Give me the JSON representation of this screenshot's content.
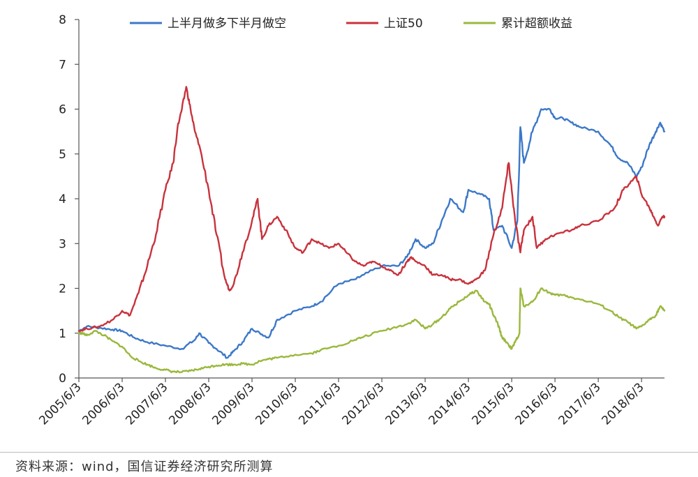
{
  "chart_data": {
    "type": "line",
    "title": "",
    "xlabel": "",
    "ylabel": "",
    "ylim": [
      0,
      8
    ],
    "yticks": [
      "0",
      "1",
      "2",
      "3",
      "4",
      "5",
      "6",
      "7",
      "8"
    ],
    "xlim": [
      2005.42,
      2018.95
    ],
    "xticks": [
      "2005/6/3",
      "2006/6/3",
      "2007/6/3",
      "2008/6/3",
      "2009/6/3",
      "2010/6/3",
      "2011/6/3",
      "2012/6/3",
      "2013/6/3",
      "2014/6/3",
      "2015/6/3",
      "2016/6/3",
      "2017/6/3",
      "2018/6/3"
    ],
    "legend_position": "top",
    "grid": false,
    "series": [
      {
        "name": "上半月做多下半月做空",
        "color": "#3c78c8",
        "points": [
          [
            2005.42,
            1.05
          ],
          [
            2005.6,
            1.15
          ],
          [
            2005.9,
            1.12
          ],
          [
            2006.2,
            1.08
          ],
          [
            2006.42,
            1.05
          ],
          [
            2006.7,
            0.9
          ],
          [
            2007.0,
            0.8
          ],
          [
            2007.42,
            0.72
          ],
          [
            2007.8,
            0.65
          ],
          [
            2008.1,
            0.85
          ],
          [
            2008.2,
            1.0
          ],
          [
            2008.42,
            0.78
          ],
          [
            2008.6,
            0.65
          ],
          [
            2008.85,
            0.45
          ],
          [
            2009.0,
            0.6
          ],
          [
            2009.2,
            0.8
          ],
          [
            2009.42,
            1.1
          ],
          [
            2009.6,
            1.0
          ],
          [
            2009.8,
            0.9
          ],
          [
            2010.0,
            1.3
          ],
          [
            2010.42,
            1.5
          ],
          [
            2010.8,
            1.6
          ],
          [
            2011.0,
            1.7
          ],
          [
            2011.42,
            2.1
          ],
          [
            2011.8,
            2.2
          ],
          [
            2012.0,
            2.3
          ],
          [
            2012.42,
            2.5
          ],
          [
            2012.8,
            2.5
          ],
          [
            2013.0,
            2.7
          ],
          [
            2013.2,
            3.1
          ],
          [
            2013.42,
            2.9
          ],
          [
            2013.6,
            3.0
          ],
          [
            2013.8,
            3.5
          ],
          [
            2014.0,
            4.0
          ],
          [
            2014.3,
            3.7
          ],
          [
            2014.42,
            4.2
          ],
          [
            2014.7,
            4.1
          ],
          [
            2014.9,
            4.0
          ],
          [
            2015.0,
            3.3
          ],
          [
            2015.2,
            3.4
          ],
          [
            2015.42,
            2.9
          ],
          [
            2015.55,
            3.5
          ],
          [
            2015.62,
            5.6
          ],
          [
            2015.7,
            4.8
          ],
          [
            2015.9,
            5.5
          ],
          [
            2016.1,
            6.0
          ],
          [
            2016.3,
            6.0
          ],
          [
            2016.42,
            5.8
          ],
          [
            2016.6,
            5.8
          ],
          [
            2016.8,
            5.7
          ],
          [
            2017.0,
            5.6
          ],
          [
            2017.42,
            5.5
          ],
          [
            2017.7,
            5.2
          ],
          [
            2017.9,
            4.9
          ],
          [
            2018.1,
            4.8
          ],
          [
            2018.3,
            4.5
          ],
          [
            2018.42,
            4.7
          ],
          [
            2018.6,
            5.2
          ],
          [
            2018.75,
            5.5
          ],
          [
            2018.85,
            5.7
          ],
          [
            2018.95,
            5.5
          ]
        ]
      },
      {
        "name": "上证50",
        "color": "#c8323c",
        "points": [
          [
            2005.42,
            1.05
          ],
          [
            2005.6,
            1.1
          ],
          [
            2005.9,
            1.15
          ],
          [
            2006.2,
            1.3
          ],
          [
            2006.42,
            1.5
          ],
          [
            2006.6,
            1.4
          ],
          [
            2006.8,
            1.9
          ],
          [
            2007.0,
            2.5
          ],
          [
            2007.2,
            3.2
          ],
          [
            2007.42,
            4.2
          ],
          [
            2007.6,
            4.8
          ],
          [
            2007.7,
            5.6
          ],
          [
            2007.8,
            6.0
          ],
          [
            2007.9,
            6.5
          ],
          [
            2008.0,
            6.0
          ],
          [
            2008.1,
            5.5
          ],
          [
            2008.2,
            5.2
          ],
          [
            2008.42,
            4.2
          ],
          [
            2008.6,
            3.2
          ],
          [
            2008.8,
            2.2
          ],
          [
            2008.9,
            1.95
          ],
          [
            2009.0,
            2.1
          ],
          [
            2009.2,
            2.8
          ],
          [
            2009.42,
            3.5
          ],
          [
            2009.55,
            4.0
          ],
          [
            2009.65,
            3.1
          ],
          [
            2009.8,
            3.4
          ],
          [
            2010.0,
            3.6
          ],
          [
            2010.2,
            3.3
          ],
          [
            2010.42,
            2.9
          ],
          [
            2010.6,
            2.8
          ],
          [
            2010.8,
            3.1
          ],
          [
            2011.0,
            3.0
          ],
          [
            2011.2,
            2.9
          ],
          [
            2011.42,
            3.0
          ],
          [
            2011.6,
            2.8
          ],
          [
            2011.8,
            2.6
          ],
          [
            2012.0,
            2.5
          ],
          [
            2012.2,
            2.6
          ],
          [
            2012.42,
            2.5
          ],
          [
            2012.6,
            2.4
          ],
          [
            2012.8,
            2.3
          ],
          [
            2013.0,
            2.6
          ],
          [
            2013.1,
            2.7
          ],
          [
            2013.2,
            2.6
          ],
          [
            2013.42,
            2.5
          ],
          [
            2013.6,
            2.3
          ],
          [
            2013.8,
            2.3
          ],
          [
            2014.0,
            2.2
          ],
          [
            2014.2,
            2.2
          ],
          [
            2014.42,
            2.1
          ],
          [
            2014.6,
            2.2
          ],
          [
            2014.8,
            2.4
          ],
          [
            2015.0,
            3.2
          ],
          [
            2015.2,
            3.8
          ],
          [
            2015.35,
            4.8
          ],
          [
            2015.42,
            4.2
          ],
          [
            2015.5,
            3.5
          ],
          [
            2015.62,
            2.8
          ],
          [
            2015.7,
            3.3
          ],
          [
            2015.9,
            3.6
          ],
          [
            2016.0,
            2.9
          ],
          [
            2016.2,
            3.1
          ],
          [
            2016.42,
            3.2
          ],
          [
            2016.8,
            3.3
          ],
          [
            2017.0,
            3.4
          ],
          [
            2017.42,
            3.5
          ],
          [
            2017.8,
            3.8
          ],
          [
            2018.0,
            4.2
          ],
          [
            2018.2,
            4.4
          ],
          [
            2018.3,
            4.5
          ],
          [
            2018.42,
            4.1
          ],
          [
            2018.6,
            3.8
          ],
          [
            2018.7,
            3.6
          ],
          [
            2018.8,
            3.4
          ],
          [
            2018.9,
            3.6
          ],
          [
            2018.95,
            3.6
          ]
        ]
      },
      {
        "name": "累计超额收益",
        "color": "#9ab83c",
        "points": [
          [
            2005.42,
            1.0
          ],
          [
            2005.5,
            1.0
          ],
          [
            2005.6,
            0.95
          ],
          [
            2005.8,
            1.05
          ],
          [
            2006.0,
            0.95
          ],
          [
            2006.2,
            0.82
          ],
          [
            2006.42,
            0.7
          ],
          [
            2006.6,
            0.5
          ],
          [
            2006.8,
            0.38
          ],
          [
            2007.0,
            0.3
          ],
          [
            2007.2,
            0.22
          ],
          [
            2007.42,
            0.18
          ],
          [
            2007.6,
            0.14
          ],
          [
            2007.8,
            0.13
          ],
          [
            2008.0,
            0.16
          ],
          [
            2008.2,
            0.2
          ],
          [
            2008.42,
            0.25
          ],
          [
            2008.6,
            0.28
          ],
          [
            2008.8,
            0.3
          ],
          [
            2009.0,
            0.3
          ],
          [
            2009.2,
            0.32
          ],
          [
            2009.42,
            0.3
          ],
          [
            2009.6,
            0.38
          ],
          [
            2009.8,
            0.42
          ],
          [
            2010.0,
            0.45
          ],
          [
            2010.42,
            0.52
          ],
          [
            2010.8,
            0.55
          ],
          [
            2011.0,
            0.62
          ],
          [
            2011.42,
            0.72
          ],
          [
            2011.8,
            0.85
          ],
          [
            2012.0,
            0.92
          ],
          [
            2012.42,
            1.05
          ],
          [
            2012.8,
            1.15
          ],
          [
            2013.0,
            1.2
          ],
          [
            2013.2,
            1.3
          ],
          [
            2013.42,
            1.1
          ],
          [
            2013.6,
            1.2
          ],
          [
            2013.8,
            1.35
          ],
          [
            2014.0,
            1.55
          ],
          [
            2014.2,
            1.7
          ],
          [
            2014.42,
            1.85
          ],
          [
            2014.6,
            1.95
          ],
          [
            2014.8,
            1.7
          ],
          [
            2014.9,
            1.65
          ],
          [
            2015.0,
            1.4
          ],
          [
            2015.1,
            1.2
          ],
          [
            2015.2,
            0.9
          ],
          [
            2015.3,
            0.8
          ],
          [
            2015.42,
            0.65
          ],
          [
            2015.5,
            0.8
          ],
          [
            2015.6,
            1.0
          ],
          [
            2015.62,
            2.0
          ],
          [
            2015.7,
            1.6
          ],
          [
            2015.9,
            1.7
          ],
          [
            2016.1,
            2.0
          ],
          [
            2016.3,
            1.9
          ],
          [
            2016.42,
            1.85
          ],
          [
            2016.6,
            1.85
          ],
          [
            2016.8,
            1.8
          ],
          [
            2017.0,
            1.75
          ],
          [
            2017.42,
            1.65
          ],
          [
            2017.7,
            1.5
          ],
          [
            2017.9,
            1.35
          ],
          [
            2018.1,
            1.25
          ],
          [
            2018.3,
            1.1
          ],
          [
            2018.42,
            1.15
          ],
          [
            2018.6,
            1.3
          ],
          [
            2018.75,
            1.4
          ],
          [
            2018.85,
            1.6
          ],
          [
            2018.95,
            1.5
          ]
        ]
      }
    ]
  },
  "source_note": "资料来源：wind，国信证券经济研究所测算"
}
